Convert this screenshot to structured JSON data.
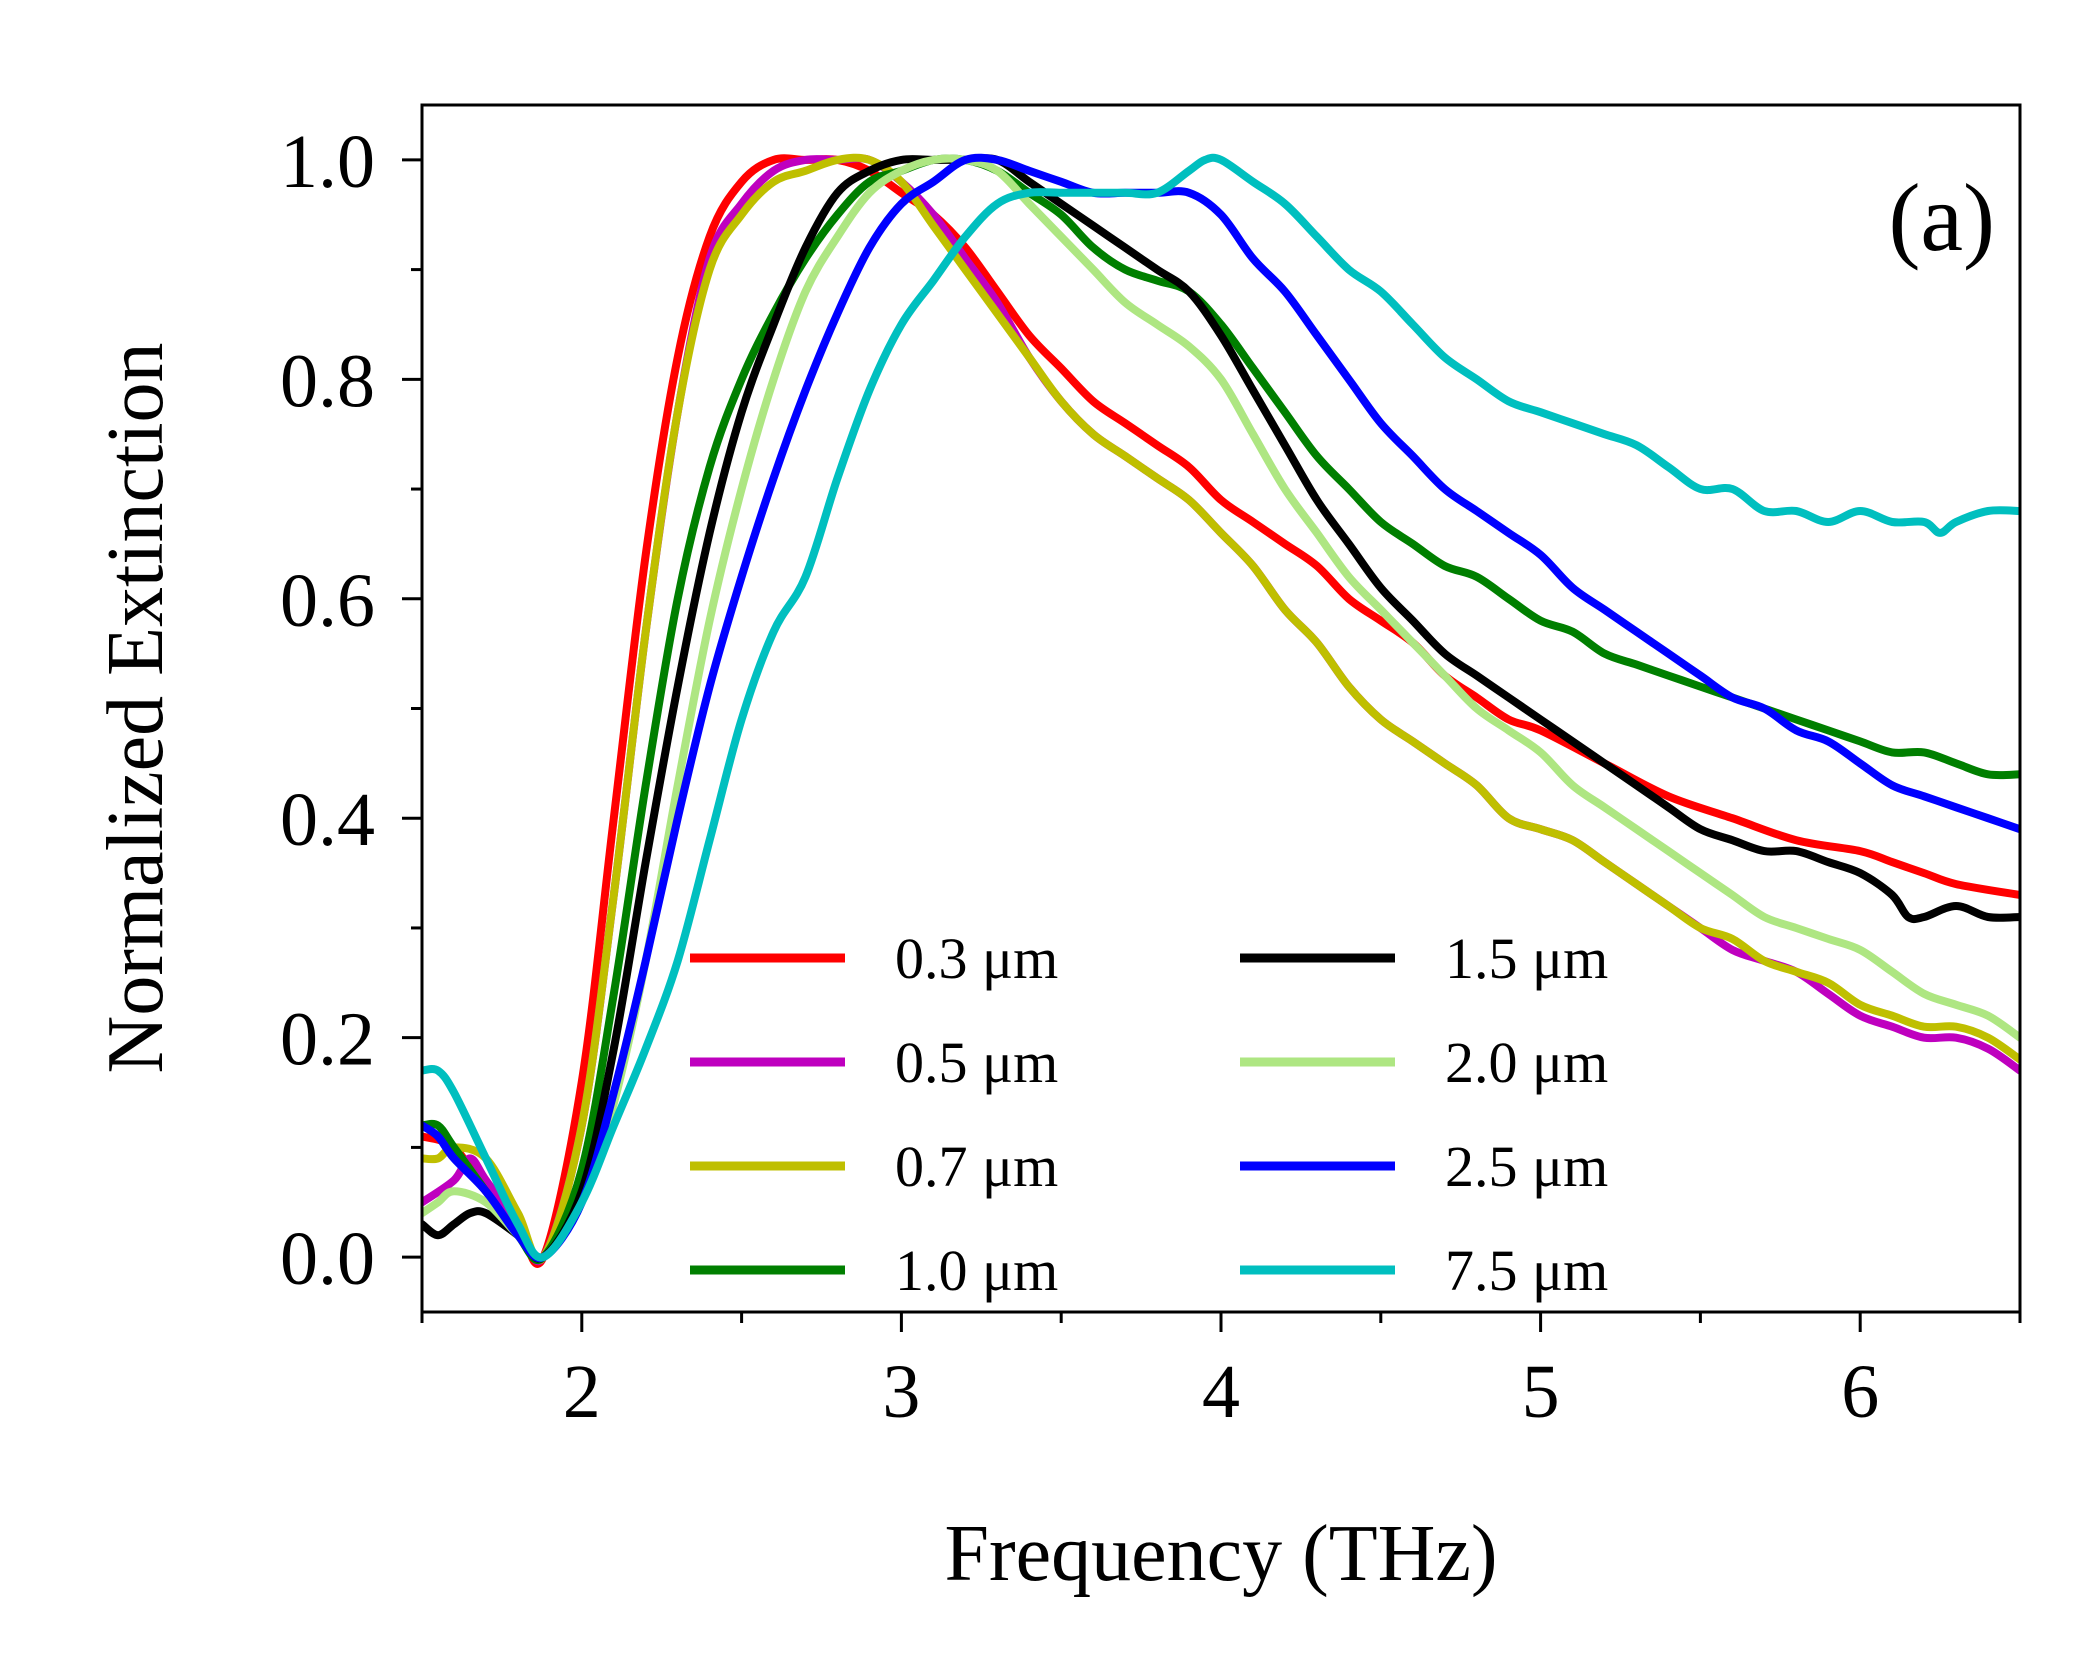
{
  "chart_data": {
    "type": "line",
    "panel_label": "(a)",
    "xlabel": "Frequency (THz)",
    "ylabel": "Normalized Extinction",
    "xlim": [
      1.5,
      6.5
    ],
    "ylim": [
      -0.05,
      1.05
    ],
    "xticks": [
      2,
      3,
      4,
      5,
      6
    ],
    "xtick_labels": [
      "2",
      "3",
      "4",
      "5",
      "6"
    ],
    "xminor": [
      1.5,
      2.5,
      3.5,
      4.5,
      5.5,
      6.5
    ],
    "yticks": [
      0.0,
      0.2,
      0.4,
      0.6,
      0.8,
      1.0
    ],
    "ytick_labels": [
      "0.0",
      "0.2",
      "0.4",
      "0.6",
      "0.8",
      "1.0"
    ],
    "yminor": [
      0.1,
      0.3,
      0.5,
      0.7,
      0.9
    ],
    "grid": false,
    "legend": {
      "placement": "lower-center",
      "columns": 2
    },
    "series": [
      {
        "name": "0.3 μm",
        "color": "#ff0000",
        "x": [
          1.5,
          1.6,
          1.7,
          1.8,
          1.88,
          2.0,
          2.1,
          2.2,
          2.3,
          2.4,
          2.5,
          2.6,
          2.7,
          2.8,
          2.9,
          3.0,
          3.1,
          3.2,
          3.3,
          3.4,
          3.5,
          3.6,
          3.7,
          3.8,
          3.9,
          4.0,
          4.1,
          4.2,
          4.3,
          4.4,
          4.5,
          4.6,
          4.7,
          4.8,
          4.9,
          5.0,
          5.2,
          5.4,
          5.6,
          5.8,
          6.0,
          6.1,
          6.2,
          6.3,
          6.5
        ],
        "y": [
          0.11,
          0.1,
          0.06,
          0.03,
          0.0,
          0.16,
          0.4,
          0.64,
          0.82,
          0.93,
          0.98,
          1.0,
          1.0,
          1.0,
          0.99,
          0.97,
          0.95,
          0.92,
          0.88,
          0.84,
          0.81,
          0.78,
          0.76,
          0.74,
          0.72,
          0.69,
          0.67,
          0.65,
          0.63,
          0.6,
          0.58,
          0.56,
          0.53,
          0.51,
          0.49,
          0.48,
          0.45,
          0.42,
          0.4,
          0.38,
          0.37,
          0.36,
          0.35,
          0.34,
          0.33
        ]
      },
      {
        "name": "0.5 μm",
        "color": "#bf00bf",
        "x": [
          1.5,
          1.6,
          1.65,
          1.7,
          1.8,
          1.88,
          2.0,
          2.1,
          2.2,
          2.3,
          2.4,
          2.5,
          2.6,
          2.7,
          2.8,
          2.9,
          3.0,
          3.1,
          3.2,
          3.3,
          3.4,
          3.5,
          3.6,
          3.7,
          3.8,
          3.9,
          4.0,
          4.1,
          4.2,
          4.3,
          4.4,
          4.5,
          4.6,
          4.7,
          4.8,
          4.9,
          5.0,
          5.1,
          5.2,
          5.3,
          5.4,
          5.5,
          5.6,
          5.7,
          5.8,
          5.9,
          6.0,
          6.1,
          6.2,
          6.3,
          6.4,
          6.5
        ],
        "y": [
          0.05,
          0.07,
          0.09,
          0.07,
          0.03,
          0.0,
          0.12,
          0.33,
          0.57,
          0.77,
          0.91,
          0.96,
          0.99,
          1.0,
          1.0,
          1.0,
          0.98,
          0.95,
          0.91,
          0.87,
          0.82,
          0.78,
          0.75,
          0.73,
          0.71,
          0.69,
          0.66,
          0.63,
          0.59,
          0.56,
          0.52,
          0.49,
          0.47,
          0.45,
          0.43,
          0.4,
          0.39,
          0.38,
          0.36,
          0.34,
          0.32,
          0.3,
          0.28,
          0.27,
          0.26,
          0.24,
          0.22,
          0.21,
          0.2,
          0.2,
          0.19,
          0.17
        ]
      },
      {
        "name": "0.7 μm",
        "color": "#bfbf00",
        "x": [
          1.5,
          1.55,
          1.6,
          1.7,
          1.8,
          1.88,
          2.0,
          2.1,
          2.2,
          2.3,
          2.4,
          2.5,
          2.6,
          2.7,
          2.8,
          2.9,
          3.0,
          3.1,
          3.2,
          3.3,
          3.4,
          3.5,
          3.6,
          3.7,
          3.8,
          3.9,
          4.0,
          4.1,
          4.2,
          4.3,
          4.4,
          4.5,
          4.6,
          4.7,
          4.8,
          4.9,
          5.0,
          5.1,
          5.2,
          5.3,
          5.4,
          5.5,
          5.6,
          5.7,
          5.8,
          5.9,
          6.0,
          6.1,
          6.2,
          6.3,
          6.4,
          6.5
        ],
        "y": [
          0.09,
          0.09,
          0.1,
          0.09,
          0.04,
          0.0,
          0.12,
          0.33,
          0.57,
          0.77,
          0.9,
          0.95,
          0.98,
          0.99,
          1.0,
          1.0,
          0.98,
          0.94,
          0.9,
          0.86,
          0.82,
          0.78,
          0.75,
          0.73,
          0.71,
          0.69,
          0.66,
          0.63,
          0.59,
          0.56,
          0.52,
          0.49,
          0.47,
          0.45,
          0.43,
          0.4,
          0.39,
          0.38,
          0.36,
          0.34,
          0.32,
          0.3,
          0.29,
          0.27,
          0.26,
          0.25,
          0.23,
          0.22,
          0.21,
          0.21,
          0.2,
          0.18
        ]
      },
      {
        "name": "1.0 μm",
        "color": "#007f00",
        "x": [
          1.5,
          1.55,
          1.6,
          1.7,
          1.8,
          1.88,
          2.0,
          2.1,
          2.2,
          2.3,
          2.4,
          2.5,
          2.6,
          2.7,
          2.8,
          2.9,
          3.0,
          3.1,
          3.2,
          3.3,
          3.4,
          3.5,
          3.6,
          3.7,
          3.8,
          3.9,
          4.0,
          4.1,
          4.2,
          4.3,
          4.4,
          4.5,
          4.6,
          4.7,
          4.8,
          4.9,
          5.0,
          5.1,
          5.2,
          5.3,
          5.4,
          5.5,
          5.6,
          5.7,
          5.8,
          5.9,
          6.0,
          6.1,
          6.2,
          6.3,
          6.4,
          6.5
        ],
        "y": [
          0.12,
          0.12,
          0.1,
          0.06,
          0.02,
          0.0,
          0.08,
          0.24,
          0.43,
          0.6,
          0.72,
          0.8,
          0.86,
          0.91,
          0.95,
          0.98,
          0.99,
          1.0,
          1.0,
          0.99,
          0.97,
          0.95,
          0.92,
          0.9,
          0.89,
          0.88,
          0.85,
          0.81,
          0.77,
          0.73,
          0.7,
          0.67,
          0.65,
          0.63,
          0.62,
          0.6,
          0.58,
          0.57,
          0.55,
          0.54,
          0.53,
          0.52,
          0.51,
          0.5,
          0.49,
          0.48,
          0.47,
          0.46,
          0.46,
          0.45,
          0.44,
          0.44
        ]
      },
      {
        "name": "1.5 μm",
        "color": "#000000",
        "x": [
          1.5,
          1.55,
          1.6,
          1.65,
          1.7,
          1.8,
          1.88,
          2.0,
          2.1,
          2.2,
          2.3,
          2.4,
          2.5,
          2.6,
          2.7,
          2.8,
          2.9,
          3.0,
          3.1,
          3.2,
          3.3,
          3.4,
          3.5,
          3.6,
          3.7,
          3.8,
          3.9,
          4.0,
          4.1,
          4.2,
          4.3,
          4.4,
          4.5,
          4.6,
          4.7,
          4.8,
          4.9,
          5.0,
          5.1,
          5.2,
          5.3,
          5.4,
          5.5,
          5.6,
          5.7,
          5.8,
          5.9,
          6.0,
          6.1,
          6.15,
          6.2,
          6.3,
          6.4,
          6.5
        ],
        "y": [
          0.03,
          0.02,
          0.03,
          0.04,
          0.04,
          0.02,
          0.0,
          0.06,
          0.19,
          0.36,
          0.52,
          0.66,
          0.77,
          0.85,
          0.92,
          0.97,
          0.99,
          1.0,
          1.0,
          1.0,
          1.0,
          0.98,
          0.96,
          0.94,
          0.92,
          0.9,
          0.88,
          0.84,
          0.79,
          0.74,
          0.69,
          0.65,
          0.61,
          0.58,
          0.55,
          0.53,
          0.51,
          0.49,
          0.47,
          0.45,
          0.43,
          0.41,
          0.39,
          0.38,
          0.37,
          0.37,
          0.36,
          0.35,
          0.33,
          0.31,
          0.31,
          0.32,
          0.31,
          0.31
        ]
      },
      {
        "name": "2.0 μm",
        "color": "#aee682",
        "x": [
          1.5,
          1.55,
          1.6,
          1.7,
          1.8,
          1.88,
          2.0,
          2.1,
          2.2,
          2.3,
          2.4,
          2.5,
          2.6,
          2.7,
          2.8,
          2.9,
          3.0,
          3.1,
          3.2,
          3.3,
          3.4,
          3.5,
          3.6,
          3.7,
          3.8,
          3.9,
          4.0,
          4.1,
          4.2,
          4.3,
          4.4,
          4.5,
          4.6,
          4.7,
          4.8,
          4.9,
          5.0,
          5.1,
          5.2,
          5.3,
          5.4,
          5.5,
          5.6,
          5.7,
          5.8,
          5.9,
          6.0,
          6.1,
          6.2,
          6.3,
          6.4,
          6.5
        ],
        "y": [
          0.04,
          0.05,
          0.06,
          0.05,
          0.02,
          0.0,
          0.05,
          0.14,
          0.27,
          0.43,
          0.58,
          0.7,
          0.8,
          0.88,
          0.93,
          0.97,
          0.99,
          1.0,
          1.0,
          0.99,
          0.96,
          0.93,
          0.9,
          0.87,
          0.85,
          0.83,
          0.8,
          0.75,
          0.7,
          0.66,
          0.62,
          0.59,
          0.56,
          0.53,
          0.5,
          0.48,
          0.46,
          0.43,
          0.41,
          0.39,
          0.37,
          0.35,
          0.33,
          0.31,
          0.3,
          0.29,
          0.28,
          0.26,
          0.24,
          0.23,
          0.22,
          0.2
        ]
      },
      {
        "name": "2.5 μm",
        "color": "#0000ff",
        "x": [
          1.5,
          1.55,
          1.6,
          1.7,
          1.8,
          1.88,
          2.0,
          2.1,
          2.2,
          2.3,
          2.4,
          2.5,
          2.6,
          2.7,
          2.8,
          2.9,
          3.0,
          3.1,
          3.2,
          3.3,
          3.4,
          3.5,
          3.6,
          3.7,
          3.8,
          3.9,
          4.0,
          4.1,
          4.2,
          4.3,
          4.4,
          4.5,
          4.6,
          4.7,
          4.8,
          4.9,
          5.0,
          5.1,
          5.2,
          5.3,
          5.4,
          5.5,
          5.6,
          5.7,
          5.8,
          5.9,
          6.0,
          6.1,
          6.2,
          6.3,
          6.4,
          6.5
        ],
        "y": [
          0.12,
          0.11,
          0.09,
          0.06,
          0.02,
          0.0,
          0.05,
          0.15,
          0.27,
          0.4,
          0.52,
          0.62,
          0.71,
          0.79,
          0.86,
          0.92,
          0.96,
          0.98,
          1.0,
          1.0,
          0.99,
          0.98,
          0.97,
          0.97,
          0.97,
          0.97,
          0.95,
          0.91,
          0.88,
          0.84,
          0.8,
          0.76,
          0.73,
          0.7,
          0.68,
          0.66,
          0.64,
          0.61,
          0.59,
          0.57,
          0.55,
          0.53,
          0.51,
          0.5,
          0.48,
          0.47,
          0.45,
          0.43,
          0.42,
          0.41,
          0.4,
          0.39
        ]
      },
      {
        "name": "7.5 μm",
        "color": "#00bfbf",
        "x": [
          1.5,
          1.55,
          1.6,
          1.7,
          1.8,
          1.88,
          2.0,
          2.1,
          2.2,
          2.3,
          2.4,
          2.5,
          2.6,
          2.7,
          2.8,
          2.9,
          3.0,
          3.1,
          3.2,
          3.3,
          3.4,
          3.5,
          3.6,
          3.7,
          3.8,
          3.9,
          3.95,
          4.0,
          4.1,
          4.2,
          4.3,
          4.4,
          4.5,
          4.6,
          4.7,
          4.8,
          4.9,
          5.0,
          5.1,
          5.2,
          5.3,
          5.4,
          5.5,
          5.6,
          5.7,
          5.8,
          5.9,
          6.0,
          6.1,
          6.2,
          6.25,
          6.3,
          6.4,
          6.5
        ],
        "y": [
          0.17,
          0.17,
          0.15,
          0.09,
          0.03,
          0.0,
          0.05,
          0.12,
          0.19,
          0.27,
          0.38,
          0.49,
          0.57,
          0.62,
          0.71,
          0.79,
          0.85,
          0.89,
          0.93,
          0.96,
          0.97,
          0.97,
          0.97,
          0.97,
          0.97,
          0.99,
          1.0,
          1.0,
          0.98,
          0.96,
          0.93,
          0.9,
          0.88,
          0.85,
          0.82,
          0.8,
          0.78,
          0.77,
          0.76,
          0.75,
          0.74,
          0.72,
          0.7,
          0.7,
          0.68,
          0.68,
          0.67,
          0.68,
          0.67,
          0.67,
          0.66,
          0.67,
          0.68,
          0.68
        ]
      }
    ]
  }
}
